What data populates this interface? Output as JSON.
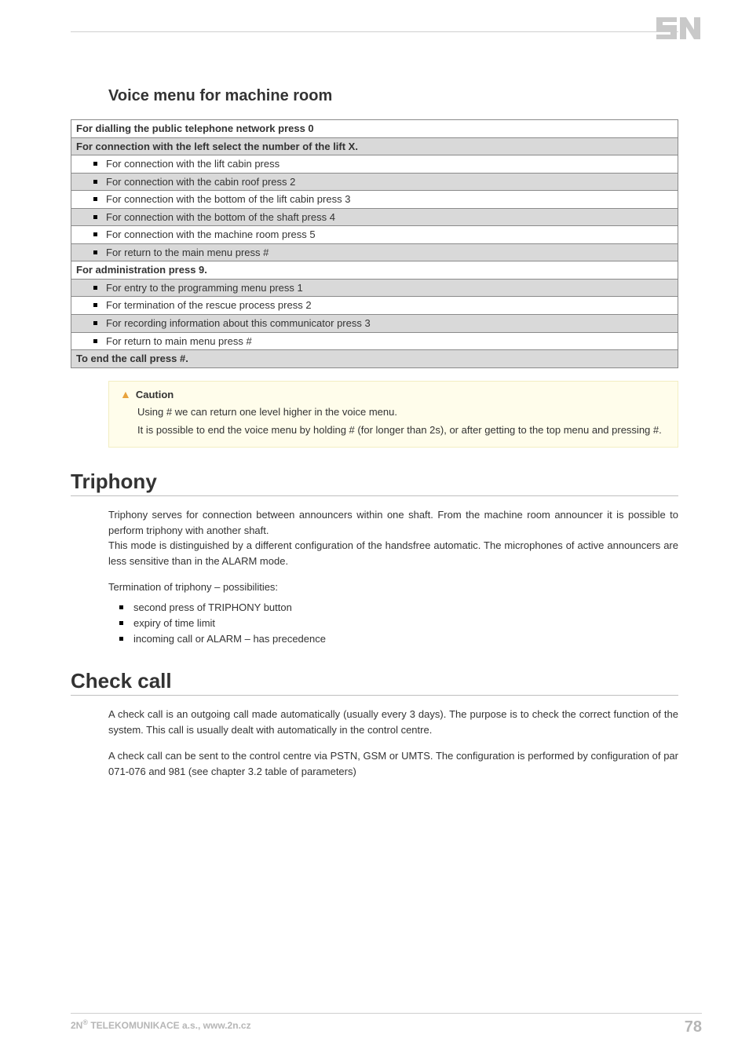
{
  "logo": {
    "fill": "#c9c9c9"
  },
  "voice_menu": {
    "heading": "Voice menu for machine room",
    "rows": [
      {
        "style": "header",
        "bg": "white",
        "text": "For dialling the public telephone network press 0"
      },
      {
        "style": "header",
        "bg": "gray",
        "text": "For connection with the left select the number of the lift X."
      },
      {
        "style": "item",
        "bg": "white",
        "text": "For connection with the lift cabin press"
      },
      {
        "style": "item",
        "bg": "gray",
        "text": "For connection with the cabin roof press 2"
      },
      {
        "style": "item",
        "bg": "white",
        "text": "For connection with the bottom of the lift cabin press 3"
      },
      {
        "style": "item",
        "bg": "gray",
        "text": "For connection with the bottom of the shaft press 4"
      },
      {
        "style": "item",
        "bg": "white",
        "text": "For connection with the machine room press 5"
      },
      {
        "style": "item",
        "bg": "gray",
        "text": "For return to the main menu press #"
      },
      {
        "style": "header",
        "bg": "white",
        "text": "For administration press 9."
      },
      {
        "style": "item",
        "bg": "gray",
        "text": "For entry to the programming menu press 1"
      },
      {
        "style": "item",
        "bg": "white",
        "text": "For termination of the rescue process press 2"
      },
      {
        "style": "item",
        "bg": "gray",
        "text": "For recording information about this communicator press 3"
      },
      {
        "style": "item",
        "bg": "white",
        "text": "For return to main menu press #"
      },
      {
        "style": "header",
        "bg": "gray",
        "text": "To end the call press #."
      }
    ]
  },
  "caution": {
    "title": "Caution",
    "line1": "Using # we can return one level higher in the voice menu.",
    "line2": "It is possible to end the voice menu by holding # (for longer than 2s), or after getting to the top menu and pressing #."
  },
  "triphony": {
    "heading": "Triphony",
    "para1": "Triphony serves for connection between announcers within one shaft. From the machine room announcer it is possible to perform triphony with another shaft.",
    "para2": "This mode is distinguished by a different configuration of the handsfree automatic. The microphones of active announcers are less sensitive than in the ALARM mode.",
    "para3": "Termination of triphony – possibilities:",
    "bullets": [
      "second press of TRIPHONY button",
      "expiry of time limit",
      "incoming call or ALARM – has precedence"
    ]
  },
  "checkcall": {
    "heading": "Check call",
    "para1": "A check call is an outgoing call made automatically (usually every 3 days). The purpose is to check the correct function of the system. This call is usually dealt with automatically in the control centre.",
    "para2": "A check call can be sent to the control centre via PSTN, GSM or UMTS. The configuration is performed by configuration of par 071-076 and 981 (see chapter 3.2 table of parameters)"
  },
  "footer": {
    "left_prefix": "2N",
    "left_rest": " TELEKOMUNIKACE a.s., www.2n.cz",
    "page": "78"
  }
}
